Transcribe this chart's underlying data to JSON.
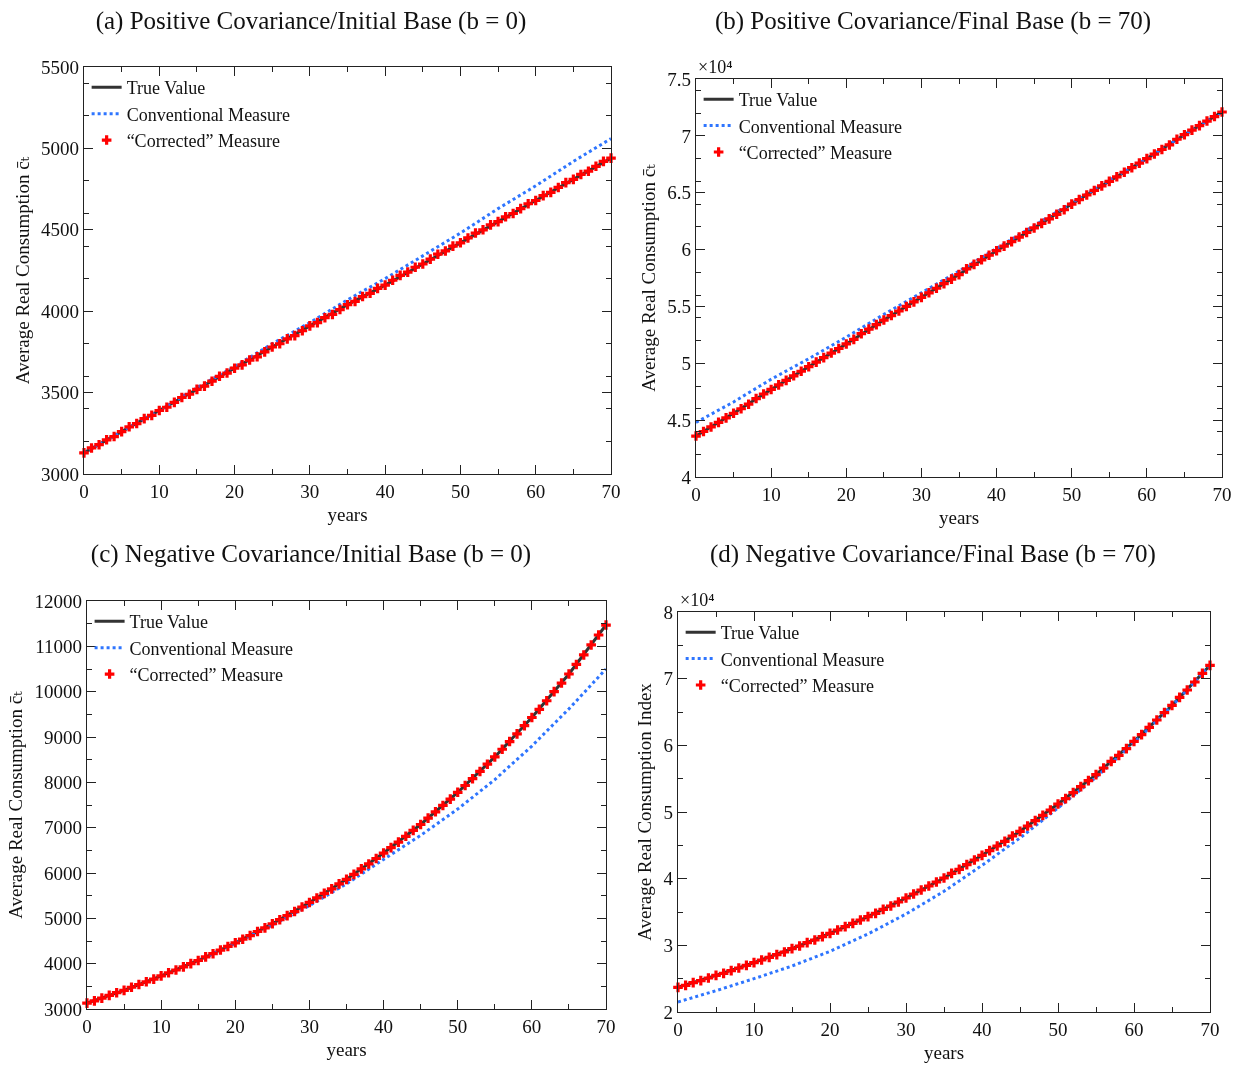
{
  "chart_data": [
    {
      "type": "line",
      "title": "(a) Positive Covariance/Initial Base (b = 0)",
      "xlabel": "years",
      "ylabel": "Average Real Consumption c̄ₜ",
      "xlim": [
        0,
        70
      ],
      "xticks": [
        0,
        10,
        20,
        30,
        40,
        50,
        60,
        70
      ],
      "ylim": [
        3000,
        5500
      ],
      "yticks": [
        3000,
        3500,
        4000,
        4500,
        5000,
        5500
      ],
      "grid": false,
      "legend": "top left",
      "series": [
        {
          "name": "True Value",
          "type": "line",
          "line_style": "solid",
          "color": "#333333",
          "x": [
            0,
            5,
            10,
            15,
            20,
            25,
            30,
            35,
            40,
            45,
            50,
            55,
            60,
            65,
            70
          ],
          "values": [
            3130,
            3260,
            3390,
            3520,
            3650,
            3780,
            3910,
            4040,
            4160,
            4290,
            4420,
            4550,
            4680,
            4810,
            4940
          ]
        },
        {
          "name": "Conventional Measure",
          "type": "line",
          "line_style": "dotted",
          "color": "#2e75ff",
          "x": [
            0,
            5,
            10,
            15,
            20,
            25,
            30,
            35,
            40,
            45,
            50,
            55,
            60,
            65,
            70
          ],
          "values": [
            3130,
            3260,
            3390,
            3530,
            3660,
            3800,
            3930,
            4070,
            4200,
            4340,
            4480,
            4630,
            4770,
            4920,
            5060
          ]
        },
        {
          "name": "“Corrected” Measure",
          "type": "scatter",
          "marker": "cross",
          "color": "#ff0000",
          "x": [
            0,
            1,
            2,
            3,
            4,
            5,
            6,
            7,
            8,
            9,
            10,
            11,
            12,
            13,
            14,
            15,
            16,
            17,
            18,
            19,
            20,
            21,
            22,
            23,
            24,
            25,
            26,
            27,
            28,
            29,
            30,
            31,
            32,
            33,
            34,
            35,
            36,
            37,
            38,
            39,
            40,
            41,
            42,
            43,
            44,
            45,
            46,
            47,
            48,
            49,
            50,
            51,
            52,
            53,
            54,
            55,
            56,
            57,
            58,
            59,
            60,
            61,
            62,
            63,
            64,
            65,
            66,
            67,
            68,
            69,
            70
          ],
          "values": [
            3130,
            3160,
            3180,
            3210,
            3230,
            3260,
            3290,
            3310,
            3340,
            3360,
            3390,
            3410,
            3440,
            3470,
            3490,
            3520,
            3540,
            3570,
            3600,
            3620,
            3650,
            3670,
            3700,
            3720,
            3750,
            3780,
            3800,
            3830,
            3850,
            3880,
            3910,
            3930,
            3960,
            3980,
            4010,
            4040,
            4060,
            4090,
            4110,
            4140,
            4160,
            4190,
            4220,
            4240,
            4270,
            4290,
            4320,
            4350,
            4370,
            4400,
            4420,
            4450,
            4480,
            4500,
            4530,
            4550,
            4580,
            4600,
            4630,
            4660,
            4680,
            4710,
            4730,
            4760,
            4790,
            4810,
            4840,
            4860,
            4890,
            4920,
            4940
          ]
        }
      ]
    },
    {
      "type": "line",
      "title": "(b) Positive Covariance/Final Base (b = 70)",
      "xlabel": "years",
      "ylabel": "Average Real Consumption c̄ₜ",
      "annotations": [
        "×10⁴"
      ],
      "xlim": [
        0,
        70
      ],
      "xticks": [
        0,
        10,
        20,
        30,
        40,
        50,
        60,
        70
      ],
      "ylim": [
        4,
        7.5
      ],
      "yticks": [
        4,
        4.5,
        5,
        5.5,
        6,
        6.5,
        7,
        7.5
      ],
      "grid": false,
      "legend": "top left",
      "series": [
        {
          "name": "True Value",
          "type": "line",
          "line_style": "solid",
          "color": "#333333",
          "x": [
            0,
            5,
            10,
            15,
            20,
            25,
            30,
            35,
            40,
            45,
            50,
            55,
            60,
            65,
            70
          ],
          "values": [
            4.36,
            4.56,
            4.77,
            4.97,
            5.17,
            5.38,
            5.58,
            5.78,
            5.99,
            6.19,
            6.4,
            6.6,
            6.8,
            7.01,
            7.21
          ]
        },
        {
          "name": "Conventional Measure",
          "type": "line",
          "line_style": "dotted",
          "color": "#2e75ff",
          "x": [
            0,
            5,
            10,
            15,
            20,
            25,
            30,
            35,
            40,
            45,
            50,
            55,
            60,
            65,
            70
          ],
          "values": [
            4.48,
            4.66,
            4.86,
            5.04,
            5.23,
            5.43,
            5.62,
            5.81,
            6.01,
            6.21,
            6.41,
            6.61,
            6.8,
            7.01,
            7.21
          ]
        },
        {
          "name": "“Corrected” Measure",
          "type": "scatter",
          "marker": "cross",
          "color": "#ff0000",
          "x": [
            0,
            1,
            2,
            3,
            4,
            5,
            6,
            7,
            8,
            9,
            10,
            11,
            12,
            13,
            14,
            15,
            16,
            17,
            18,
            19,
            20,
            21,
            22,
            23,
            24,
            25,
            26,
            27,
            28,
            29,
            30,
            31,
            32,
            33,
            34,
            35,
            36,
            37,
            38,
            39,
            40,
            41,
            42,
            43,
            44,
            45,
            46,
            47,
            48,
            49,
            50,
            51,
            52,
            53,
            54,
            55,
            56,
            57,
            58,
            59,
            60,
            61,
            62,
            63,
            64,
            65,
            66,
            67,
            68,
            69,
            70
          ],
          "values": [
            4.36,
            4.4,
            4.44,
            4.48,
            4.52,
            4.56,
            4.6,
            4.64,
            4.69,
            4.73,
            4.77,
            4.81,
            4.85,
            4.89,
            4.93,
            4.97,
            5.01,
            5.05,
            5.09,
            5.13,
            5.17,
            5.21,
            5.26,
            5.3,
            5.34,
            5.38,
            5.42,
            5.46,
            5.5,
            5.54,
            5.58,
            5.62,
            5.66,
            5.7,
            5.74,
            5.78,
            5.83,
            5.87,
            5.91,
            5.95,
            5.99,
            6.03,
            6.07,
            6.11,
            6.15,
            6.19,
            6.23,
            6.27,
            6.31,
            6.35,
            6.4,
            6.44,
            6.48,
            6.52,
            6.56,
            6.6,
            6.64,
            6.68,
            6.72,
            6.76,
            6.8,
            6.84,
            6.88,
            6.92,
            6.97,
            7.01,
            7.05,
            7.09,
            7.13,
            7.17,
            7.21
          ]
        }
      ]
    },
    {
      "type": "line",
      "title": "(c) Negative Covariance/Initial Base (b = 0)",
      "xlabel": "years",
      "ylabel": "Average Real Consumption c̄ₜ",
      "xlim": [
        0,
        70
      ],
      "xticks": [
        0,
        10,
        20,
        30,
        40,
        50,
        60,
        70
      ],
      "ylim": [
        3000,
        12000
      ],
      "yticks": [
        3000,
        4000,
        5000,
        6000,
        7000,
        8000,
        9000,
        10000,
        11000,
        12000
      ],
      "grid": false,
      "legend": "top left",
      "series": [
        {
          "name": "True Value",
          "type": "line",
          "line_style": "solid",
          "color": "#333333",
          "x": [
            0,
            5,
            10,
            15,
            20,
            25,
            30,
            35,
            40,
            45,
            50,
            55,
            60,
            65,
            70
          ],
          "values": [
            3130,
            3410,
            3730,
            4070,
            4460,
            4880,
            5350,
            5860,
            6440,
            7070,
            7780,
            8560,
            9430,
            10390,
            11470
          ]
        },
        {
          "name": "Conventional Measure",
          "type": "line",
          "line_style": "dotted",
          "color": "#2e75ff",
          "x": [
            15,
            20,
            25,
            30,
            35,
            40,
            45,
            50,
            55,
            60,
            65,
            70
          ],
          "values": [
            4060,
            4450,
            4850,
            5280,
            5760,
            6300,
            6830,
            7410,
            8060,
            8800,
            9620,
            10500
          ]
        },
        {
          "name": "“Corrected” Measure",
          "type": "scatter",
          "marker": "cross",
          "color": "#ff0000",
          "x": [
            0,
            1,
            2,
            3,
            4,
            5,
            6,
            7,
            8,
            9,
            10,
            11,
            12,
            13,
            14,
            15,
            16,
            17,
            18,
            19,
            20,
            21,
            22,
            23,
            24,
            25,
            26,
            27,
            28,
            29,
            30,
            31,
            32,
            33,
            34,
            35,
            36,
            37,
            38,
            39,
            40,
            41,
            42,
            43,
            44,
            45,
            46,
            47,
            48,
            49,
            50,
            51,
            52,
            53,
            54,
            55,
            56,
            57,
            58,
            59,
            60,
            61,
            62,
            63,
            64,
            65,
            66,
            67,
            68,
            69,
            70
          ],
          "values": [
            3130,
            3180,
            3240,
            3300,
            3360,
            3410,
            3480,
            3540,
            3600,
            3660,
            3730,
            3800,
            3860,
            3930,
            4000,
            4070,
            4150,
            4220,
            4300,
            4380,
            4460,
            4540,
            4620,
            4710,
            4790,
            4880,
            4970,
            5060,
            5150,
            5250,
            5350,
            5450,
            5550,
            5650,
            5760,
            5860,
            5970,
            6090,
            6200,
            6320,
            6440,
            6560,
            6680,
            6810,
            6940,
            7070,
            7210,
            7350,
            7490,
            7630,
            7780,
            7930,
            8080,
            8240,
            8400,
            8560,
            8730,
            8900,
            9070,
            9250,
            9430,
            9610,
            9800,
            10000,
            10190,
            10390,
            10600,
            10810,
            11030,
            11250,
            11470
          ]
        }
      ]
    },
    {
      "type": "line",
      "title": "(d) Negative Covariance/Final Base (b = 70)",
      "xlabel": "years",
      "ylabel": "Average Real Consumption Index",
      "annotations": [
        "×10⁴"
      ],
      "xlim": [
        0,
        70
      ],
      "xticks": [
        0,
        10,
        20,
        30,
        40,
        50,
        60,
        70
      ],
      "ylim": [
        2,
        8
      ],
      "yticks": [
        2,
        3,
        4,
        5,
        6,
        7,
        8
      ],
      "grid": false,
      "legend": "top left",
      "series": [
        {
          "name": "True Value",
          "type": "line",
          "line_style": "solid",
          "color": "#333333",
          "x": [
            0,
            5,
            10,
            15,
            20,
            25,
            30,
            35,
            40,
            45,
            50,
            55,
            60,
            65,
            70
          ],
          "values": [
            2.37,
            2.55,
            2.74,
            2.95,
            3.18,
            3.43,
            3.71,
            4.01,
            4.35,
            4.71,
            5.12,
            5.56,
            6.06,
            6.6,
            7.2
          ]
        },
        {
          "name": "Conventional Measure",
          "type": "line",
          "line_style": "dotted",
          "color": "#2e75ff",
          "x": [
            0,
            5,
            10,
            15,
            20,
            25,
            30,
            35,
            40,
            45,
            50,
            55,
            60,
            65,
            70
          ],
          "values": [
            2.15,
            2.32,
            2.5,
            2.69,
            2.91,
            3.17,
            3.47,
            3.81,
            4.2,
            4.61,
            5.06,
            5.52,
            6.04,
            6.59,
            7.2
          ]
        },
        {
          "name": "“Corrected” Measure",
          "type": "scatter",
          "marker": "cross",
          "color": "#ff0000",
          "x": [
            0,
            1,
            2,
            3,
            4,
            5,
            6,
            7,
            8,
            9,
            10,
            11,
            12,
            13,
            14,
            15,
            16,
            17,
            18,
            19,
            20,
            21,
            22,
            23,
            24,
            25,
            26,
            27,
            28,
            29,
            30,
            31,
            32,
            33,
            34,
            35,
            36,
            37,
            38,
            39,
            40,
            41,
            42,
            43,
            44,
            45,
            46,
            47,
            48,
            49,
            50,
            51,
            52,
            53,
            54,
            55,
            56,
            57,
            58,
            59,
            60,
            61,
            62,
            63,
            64,
            65,
            66,
            67,
            68,
            69,
            70
          ],
          "values": [
            2.37,
            2.4,
            2.44,
            2.47,
            2.51,
            2.55,
            2.58,
            2.62,
            2.66,
            2.7,
            2.74,
            2.78,
            2.82,
            2.86,
            2.9,
            2.95,
            2.99,
            3.04,
            3.08,
            3.13,
            3.18,
            3.23,
            3.28,
            3.33,
            3.38,
            3.43,
            3.48,
            3.54,
            3.59,
            3.65,
            3.71,
            3.77,
            3.83,
            3.89,
            3.95,
            4.01,
            4.08,
            4.14,
            4.21,
            4.28,
            4.35,
            4.42,
            4.49,
            4.56,
            4.64,
            4.71,
            4.79,
            4.87,
            4.95,
            5.03,
            5.12,
            5.2,
            5.29,
            5.38,
            5.47,
            5.56,
            5.66,
            5.76,
            5.85,
            5.95,
            6.06,
            6.16,
            6.27,
            6.38,
            6.49,
            6.6,
            6.72,
            6.83,
            6.95,
            7.08,
            7.2
          ]
        }
      ]
    }
  ]
}
